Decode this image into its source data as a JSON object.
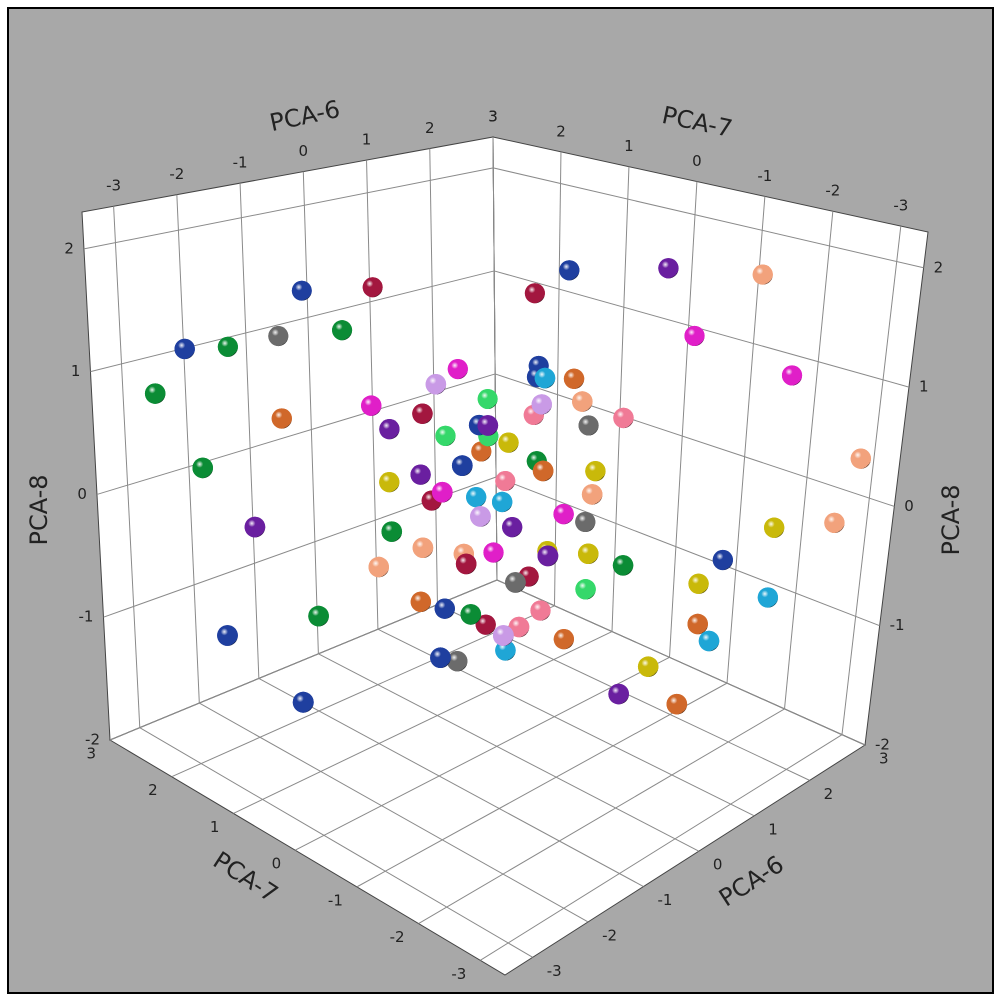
{
  "chart_data": {
    "type": "scatter3d",
    "xlabel": "PCA-6",
    "ylabel": "PCA-7",
    "zlabel": "PCA-8",
    "xlim": [
      -3.5,
      3
    ],
    "ylim": [
      -3.4,
      3
    ],
    "zlim": [
      -2,
      2.3
    ],
    "xticks": [
      -3,
      -2,
      -1,
      0,
      1,
      2,
      3
    ],
    "yticks": [
      -3,
      -2,
      -1,
      0,
      1,
      2,
      3
    ],
    "zticks": [
      -2,
      -1,
      0,
      1,
      2
    ],
    "grid": true,
    "x": [
      1.5,
      2.5,
      1,
      -2.5,
      -3,
      -1.5,
      -1,
      -0.5,
      -0.5,
      0,
      1,
      2,
      2.8,
      3,
      -2.8,
      -2.5,
      -3,
      -2,
      -2.8,
      -1,
      0.5,
      1,
      1,
      2.5,
      2.2,
      2.5,
      3,
      1.8,
      1.5,
      1.5,
      -1.5,
      -0.8,
      0.2,
      0.6,
      -0.4,
      0.9,
      -1.1,
      0.3,
      -0.2,
      1.2,
      -0.6,
      0,
      0.5,
      -0.9,
      0.8,
      -0.3,
      1.0,
      -0.7,
      0.4,
      -1.2,
      0.2,
      0.7,
      -0.5,
      1.1,
      -0.1,
      0.6,
      -0.8,
      0.1,
      -1.0,
      0.9,
      -0.4,
      0.3,
      -0.2,
      0.5,
      -0.6,
      1.3,
      -1.3,
      0,
      0.8,
      -0.9,
      0.4,
      -0.3,
      0.7,
      -0.7,
      1.0,
      0.2,
      -1.1,
      0.6,
      -0.5,
      0.9,
      0.1,
      -0.1,
      0.4,
      -0.8,
      1.2,
      -0.2,
      0.5,
      -0.6,
      0.3,
      -1.0,
      0.8
    ],
    "y": [
      -1,
      -1.5,
      0,
      2.5,
      2.5,
      2.8,
      2.5,
      2,
      2.6,
      2,
      0.5,
      -1,
      -1.8,
      -2.8,
      2,
      1.5,
      1.5,
      1,
      0.5,
      0,
      -1.5,
      -1.5,
      -2,
      -2,
      -1.5,
      -2,
      -2.5,
      -1.5,
      -2,
      -1.8,
      2,
      0.5,
      -0.3,
      0.1,
      0.9,
      -0.6,
      0.2,
      0.4,
      -0.8,
      -0.2,
      -0.1,
      0,
      0.7,
      -0.5,
      0.3,
      0.6,
      -0.9,
      1.1,
      -1.0,
      0.8,
      0.9,
      -0.4,
      -0.7,
      0.5,
      -0.2,
      -0.8,
      0.3,
      1.2,
      -0.3,
      0.8,
      -1.1,
      0.2,
      0.4,
      -0.5,
      0.7,
      -0.1,
      0.5,
      -0.6,
      1.0,
      -0.9,
      0.6,
      0.1,
      0,
      -0.4,
      0.2,
      -1.2,
      1.0,
      0.9,
      0.2,
      -1.1,
      0.5,
      0.8,
      -0.2,
      -0.2,
      0.6,
      -0.5,
      0.3,
      1.2,
      -0.9,
      0,
      -0.3
    ],
    "z": [
      2.0,
      1.8,
      1.9,
      1.2,
      0.9,
      1.0,
      1.1,
      1.2,
      1.4,
      1.5,
      1.6,
      1.3,
      0.9,
      0.3,
      0.4,
      0,
      -0.8,
      -0.7,
      -1.1,
      -1,
      -1.3,
      -1.2,
      -1.4,
      -0.9,
      -0.6,
      -0.3,
      -0.3,
      -0.7,
      -1,
      -0.9,
      0.6,
      0.9,
      1.2,
      0.7,
      0.2,
      0.3,
      -0.1,
      -0.5,
      0.6,
      -0.3,
      -0.7,
      0.1,
      0.4,
      0.3,
      -0.8,
      -0.9,
      0.8,
      0.6,
      -0.2,
      -0.4,
      1.0,
      1.1,
      -0.3,
      0.1,
      -1.1,
      -0.6,
      1.2,
      -0.2,
      0.7,
      -0.1,
      0,
      0.5,
      -0.4,
      0,
      -0.8,
      0.5,
      0,
      1.3,
      0.6,
      -0.6,
      -1.2,
      0.8,
      -1.0,
      1.0,
      -0.6,
      0.4,
      0.9,
      0.2,
      -1.2,
      -0.4,
      0,
      0.5,
      0.9,
      -0.2,
      0.9,
      -0.8,
      -0.3,
      0.1,
      1.1,
      0.4,
      -1.2
    ],
    "colors": [
      "#6a1fa0",
      "#f2a27c",
      "#1f3f9f",
      "#1f3f9f",
      "#0b8c35",
      "#0b8c35",
      "#6b6b6b",
      "#0b8c35",
      "#1f3f9f",
      "#a3173f",
      "#a3173f",
      "#e01fc8",
      "#e01fc8",
      "#f2a27c",
      "#0b8c35",
      "#6a1fa0",
      "#1f3f9f",
      "#0b8c35",
      "#1f3f9f",
      "#1f3f9f",
      "#6a1fa0",
      "#c9b90a",
      "#d0682a",
      "#1fa6d6",
      "#1f3f9f",
      "#c9b90a",
      "#f2a27c",
      "#c9b90a",
      "#1fa6d6",
      "#d0682a",
      "#d0682a",
      "#a3173f",
      "#1f3f9f",
      "#f07a96",
      "#6a1fa0",
      "#c9b90a",
      "#f2a27c",
      "#e01fc8",
      "#d0682a",
      "#6b6b6b",
      "#0b8c35",
      "#1fa6d6",
      "#35d86a",
      "#c99ae6",
      "#a3173f",
      "#1f3f9f",
      "#f07a96",
      "#6a1fa0",
      "#c9b90a",
      "#f2a27c",
      "#e01fc8",
      "#d0682a",
      "#6b6b6b",
      "#0b8c35",
      "#1fa6d6",
      "#35d86a",
      "#c99ae6",
      "#a3173f",
      "#1f3f9f",
      "#f07a96",
      "#6a1fa0",
      "#c9b90a",
      "#f2a27c",
      "#e01fc8",
      "#d0682a",
      "#6b6b6b",
      "#0b8c35",
      "#1fa6d6",
      "#35d86a",
      "#c99ae6",
      "#a3173f",
      "#1f3f9f",
      "#f07a96",
      "#6a1fa0",
      "#c9b90a",
      "#f2a27c",
      "#e01fc8",
      "#d0682a",
      "#6b6b6b",
      "#0b8c35",
      "#1fa6d6",
      "#35d86a",
      "#c99ae6",
      "#a3173f",
      "#1f3f9f",
      "#f07a96",
      "#6a1fa0",
      "#c9b90a",
      "#f2a27c",
      "#e01fc8",
      "#d0682a"
    ]
  }
}
